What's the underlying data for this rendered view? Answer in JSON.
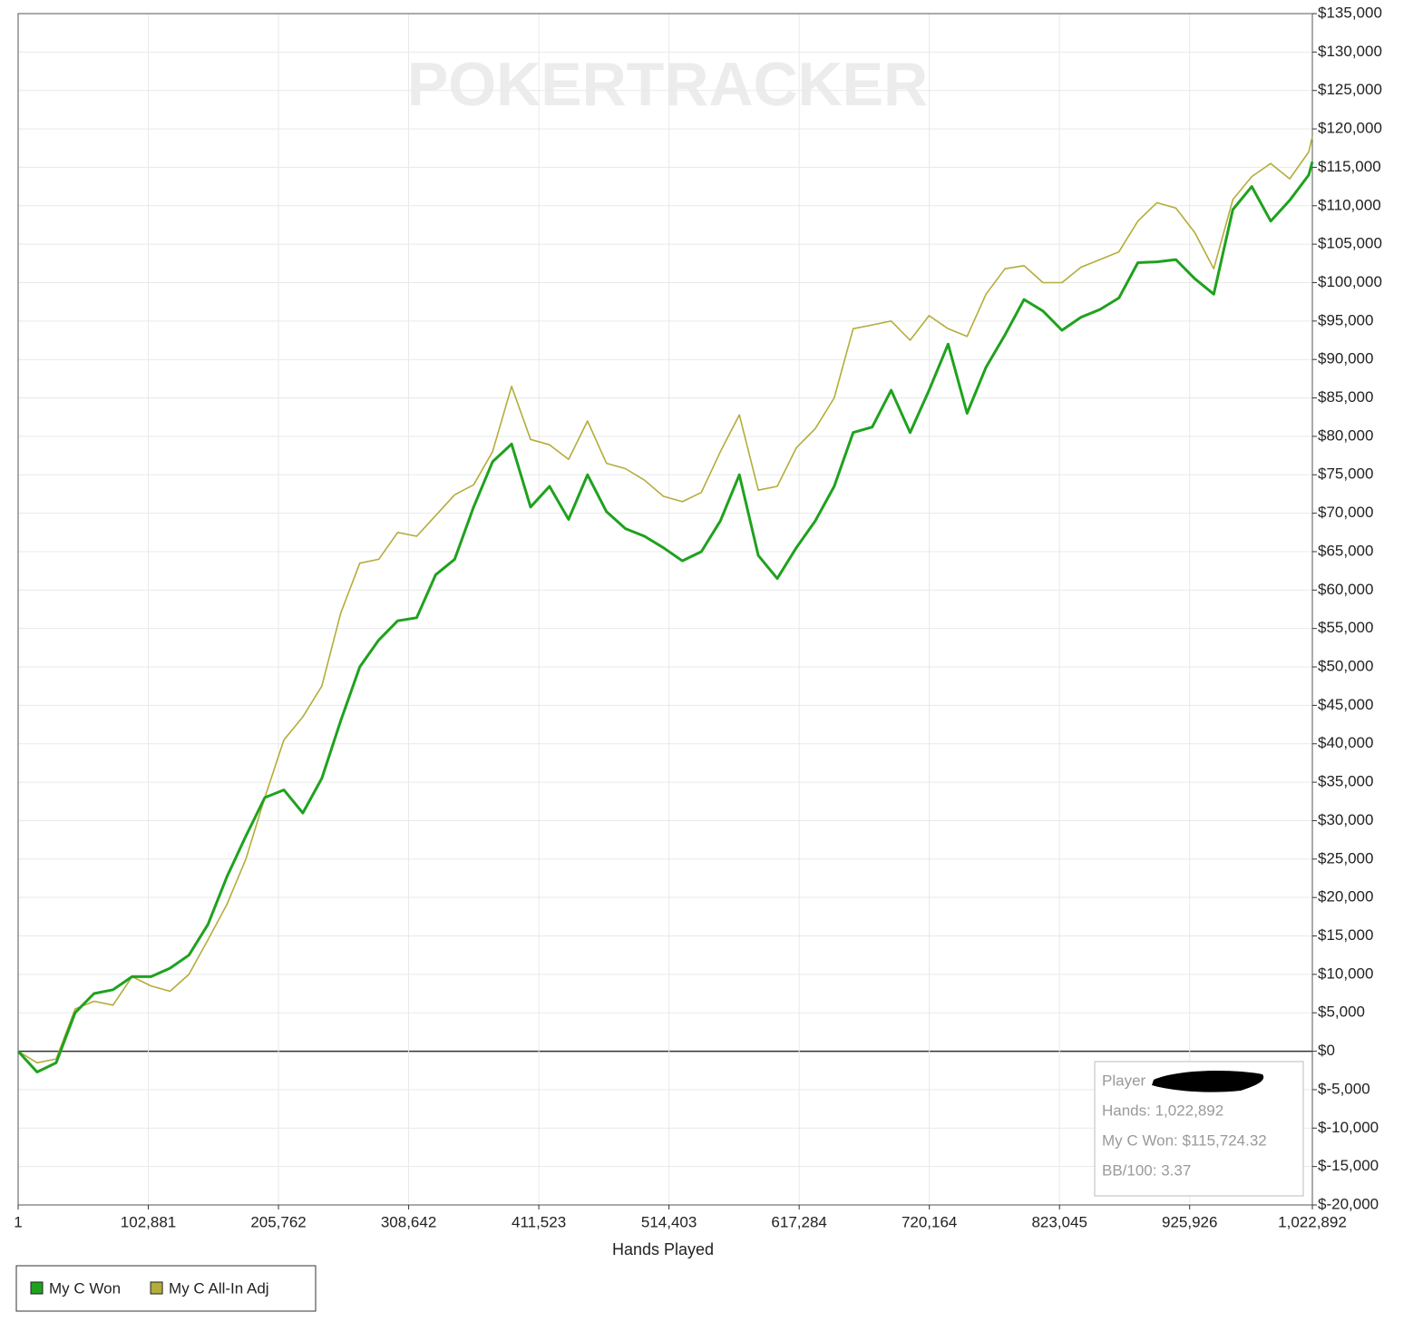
{
  "chart_data": {
    "type": "line",
    "watermark": "POKERTRACKER",
    "x_label": "Hands Played",
    "x": [
      1,
      15000,
      30000,
      45000,
      60000,
      75000,
      90000,
      105000,
      120000,
      135000,
      150000,
      165000,
      180000,
      195000,
      210000,
      225000,
      240000,
      255000,
      270000,
      285000,
      300000,
      315000,
      330000,
      345000,
      360000,
      375000,
      390000,
      405000,
      420000,
      435000,
      450000,
      465000,
      480000,
      495000,
      510000,
      525000,
      540000,
      555000,
      570000,
      585000,
      600000,
      615000,
      630000,
      645000,
      660000,
      675000,
      690000,
      705000,
      720000,
      735000,
      750000,
      765000,
      780000,
      795000,
      810000,
      825000,
      840000,
      855000,
      870000,
      885000,
      900000,
      915000,
      930000,
      945000,
      960000,
      975000,
      990000,
      1005000,
      1020000,
      1022892
    ],
    "series": [
      {
        "name": "My C Won",
        "color": "#1ea21e",
        "values": [
          0,
          -2700,
          -1500,
          5000,
          7500,
          8000,
          9700,
          9700,
          10800,
          12500,
          16500,
          22700,
          28000,
          33000,
          34000,
          31000,
          35500,
          43000,
          50000,
          53500,
          56000,
          56400,
          62000,
          64000,
          70800,
          76700,
          79000,
          70800,
          73500,
          69200,
          75000,
          70200,
          68000,
          67000,
          65500,
          63800,
          65000,
          69000,
          75000,
          64500,
          61500,
          65500,
          69000,
          73500,
          80500,
          81200,
          86000,
          80500,
          86000,
          92000,
          83000,
          89000,
          93200,
          97800,
          96300,
          93800,
          95500,
          96500,
          98000,
          102600,
          102700,
          103000,
          100500,
          98500,
          109500,
          112500,
          108000,
          110700,
          114000,
          115724
        ]
      },
      {
        "name": "My C All-In Adj",
        "color": "#b3ad3a",
        "values": [
          0,
          -1500,
          -1000,
          5500,
          6500,
          6000,
          9700,
          8500,
          7800,
          10000,
          14500,
          19100,
          25000,
          33000,
          40500,
          43500,
          47500,
          57000,
          63500,
          64000,
          67500,
          67000,
          69700,
          72400,
          73700,
          78000,
          86500,
          79600,
          78900,
          77000,
          82000,
          76500,
          75800,
          74300,
          72200,
          71500,
          72700,
          78000,
          82800,
          73000,
          73500,
          78500,
          81000,
          85000,
          94000,
          94500,
          95000,
          92500,
          95700,
          94000,
          93000,
          98500,
          101800,
          102200,
          100000,
          100000,
          102000,
          103000,
          104000,
          108000,
          110400,
          109700,
          106500,
          101800,
          110800,
          113800,
          115500,
          113500,
          117000,
          119000
        ]
      }
    ],
    "xlim": [
      1,
      1022892
    ],
    "xticks": [
      1,
      {
        "value": 102881,
        "label": "102,881"
      },
      {
        "value": 205762,
        "label": "205,762"
      },
      {
        "value": 308642,
        "label": "308,642"
      },
      {
        "value": 411523,
        "label": "411,523"
      },
      {
        "value": 514403,
        "label": "514,403"
      },
      {
        "value": 617284,
        "label": "617,284"
      },
      {
        "value": 720164,
        "label": "720,164"
      },
      {
        "value": 823045,
        "label": "823,045"
      },
      {
        "value": 925926,
        "label": "925,926"
      },
      {
        "value": 1022892,
        "label": "1,022,892"
      }
    ],
    "ylim": [
      -20000,
      135000
    ],
    "yticks": [
      {
        "value": -20000,
        "label": "$-20,000"
      },
      {
        "value": -15000,
        "label": "$-15,000"
      },
      {
        "value": -10000,
        "label": "$-10,000"
      },
      {
        "value": -5000,
        "label": "$-5,000"
      },
      {
        "value": 0,
        "label": "$0"
      },
      {
        "value": 5000,
        "label": "$5,000"
      },
      {
        "value": 10000,
        "label": "$10,000"
      },
      {
        "value": 15000,
        "label": "$15,000"
      },
      {
        "value": 20000,
        "label": "$20,000"
      },
      {
        "value": 25000,
        "label": "$25,000"
      },
      {
        "value": 30000,
        "label": "$30,000"
      },
      {
        "value": 35000,
        "label": "$35,000"
      },
      {
        "value": 40000,
        "label": "$40,000"
      },
      {
        "value": 45000,
        "label": "$45,000"
      },
      {
        "value": 50000,
        "label": "$50,000"
      },
      {
        "value": 55000,
        "label": "$55,000"
      },
      {
        "value": 60000,
        "label": "$60,000"
      },
      {
        "value": 65000,
        "label": "$65,000"
      },
      {
        "value": 70000,
        "label": "$70,000"
      },
      {
        "value": 75000,
        "label": "$75,000"
      },
      {
        "value": 80000,
        "label": "$80,000"
      },
      {
        "value": 85000,
        "label": "$85,000"
      },
      {
        "value": 90000,
        "label": "$90,000"
      },
      {
        "value": 95000,
        "label": "$95,000"
      },
      {
        "value": 100000,
        "label": "$100,000"
      },
      {
        "value": 105000,
        "label": "$105,000"
      },
      {
        "value": 110000,
        "label": "$110,000"
      },
      {
        "value": 115000,
        "label": "$115,000"
      },
      {
        "value": 120000,
        "label": "$120,000"
      },
      {
        "value": 125000,
        "label": "$125,000"
      },
      {
        "value": 130000,
        "label": "$130,000"
      },
      {
        "value": 135000,
        "label": "$135,000"
      }
    ],
    "grid": true,
    "tooltip": [
      "Player",
      "Hands: 1,022,892",
      "My C Won: $115,724.32",
      "BB/100: 3.37"
    ]
  }
}
